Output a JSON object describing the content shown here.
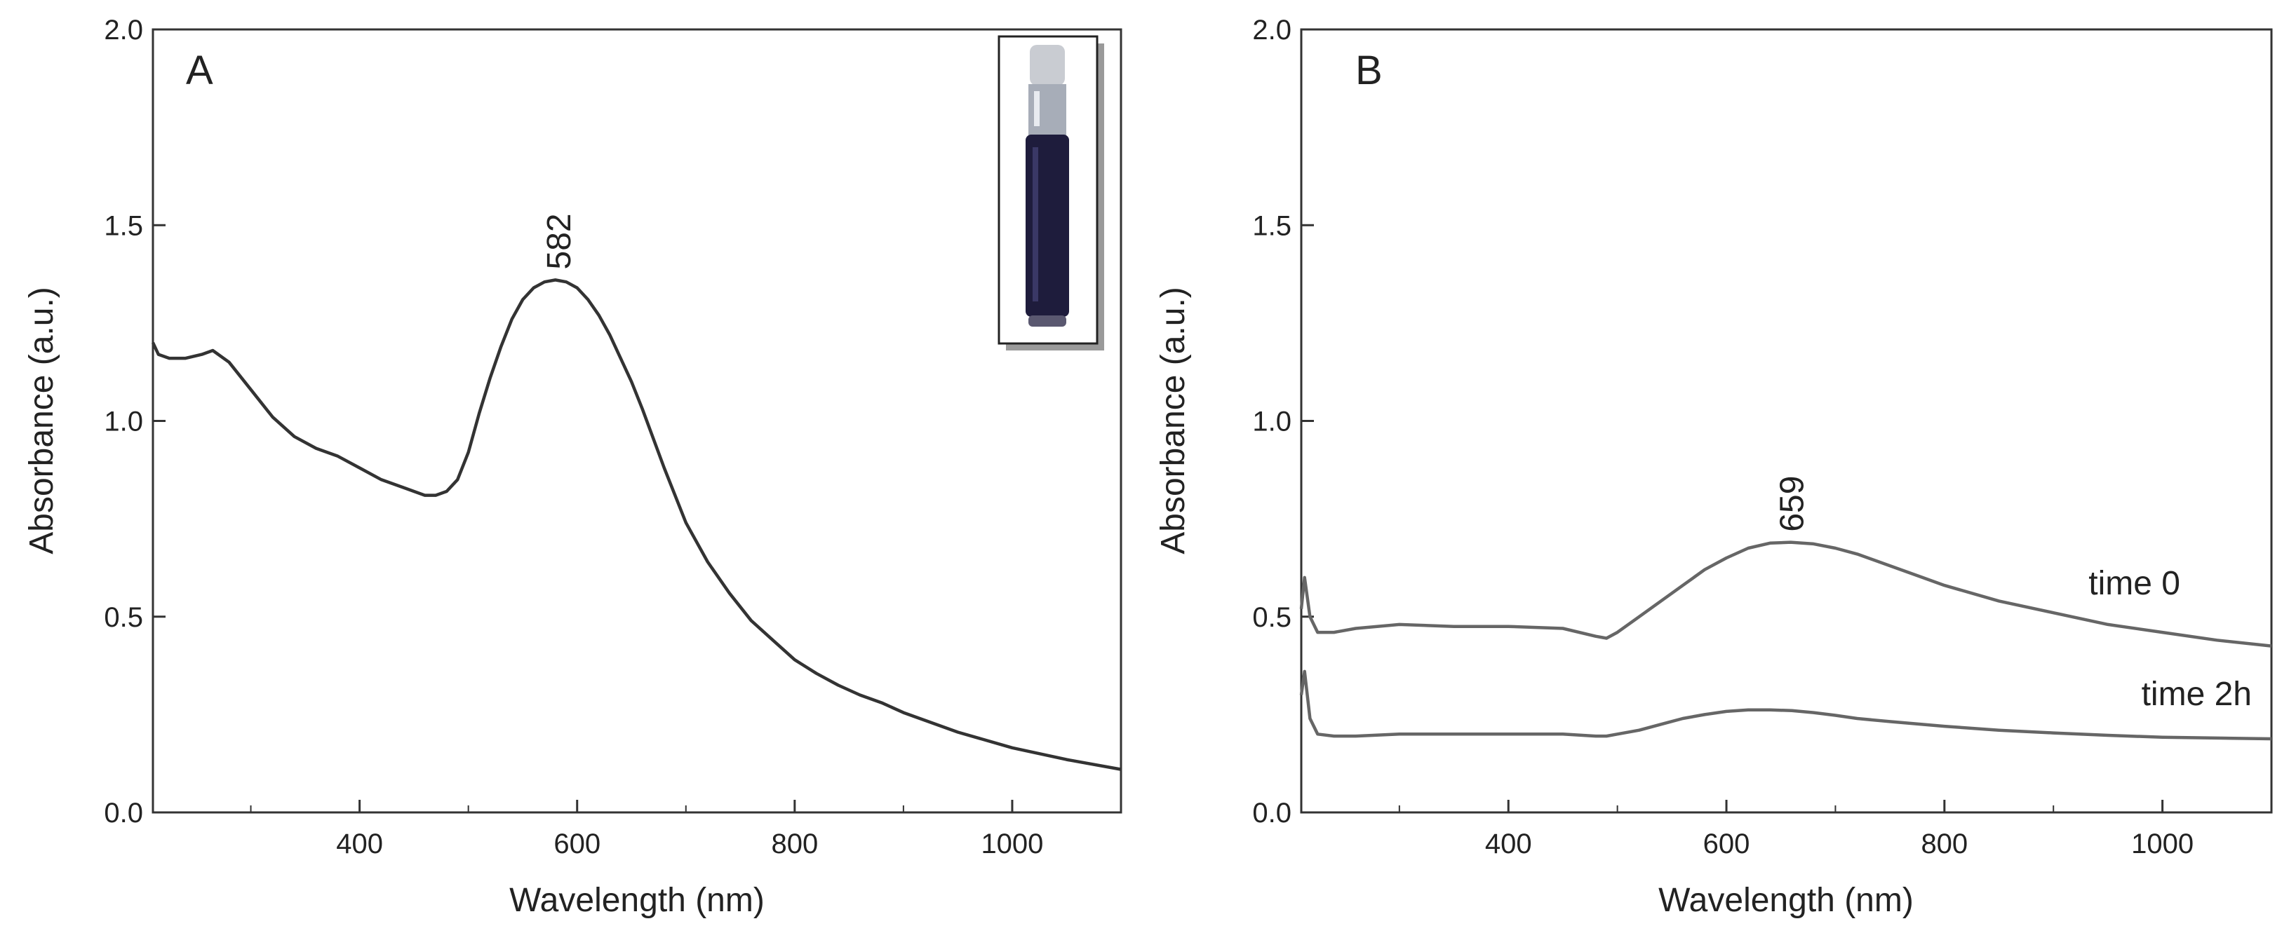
{
  "chart_data": [
    {
      "type": "line",
      "panel": "A",
      "xlabel": "Wavelength (nm)",
      "ylabel": "Absorbance (a.u.)",
      "xlim": [
        210,
        1100
      ],
      "ylim": [
        0.0,
        2.0
      ],
      "xticks": [
        400,
        600,
        800,
        1000
      ],
      "yticks": [
        "0.0",
        "0.5",
        "1.0",
        "1.5",
        "2.0"
      ],
      "grid": false,
      "inset": "vial-photo",
      "annotations": [
        {
          "text": "582",
          "x": 582,
          "y": 1.36
        }
      ],
      "series": [
        {
          "color": "#333333",
          "x": [
            210,
            215,
            225,
            240,
            255,
            265,
            280,
            300,
            320,
            340,
            360,
            380,
            400,
            420,
            440,
            460,
            470,
            480,
            490,
            500,
            510,
            520,
            530,
            540,
            550,
            560,
            570,
            580,
            590,
            600,
            610,
            620,
            630,
            640,
            650,
            660,
            680,
            700,
            720,
            740,
            760,
            780,
            800,
            820,
            840,
            860,
            880,
            900,
            950,
            1000,
            1050,
            1100
          ],
          "y": [
            1.2,
            1.17,
            1.16,
            1.16,
            1.17,
            1.18,
            1.15,
            1.08,
            1.01,
            0.96,
            0.93,
            0.91,
            0.88,
            0.85,
            0.83,
            0.81,
            0.81,
            0.82,
            0.85,
            0.92,
            1.02,
            1.11,
            1.19,
            1.26,
            1.31,
            1.34,
            1.355,
            1.36,
            1.355,
            1.34,
            1.31,
            1.27,
            1.22,
            1.16,
            1.1,
            1.03,
            0.88,
            0.74,
            0.64,
            0.56,
            0.49,
            0.44,
            0.39,
            0.355,
            0.325,
            0.3,
            0.28,
            0.255,
            0.205,
            0.165,
            0.135,
            0.11
          ]
        }
      ]
    },
    {
      "type": "line",
      "panel": "B",
      "xlabel": "Wavelength (nm)",
      "ylabel": "Absorbance (a.u.)",
      "xlim": [
        210,
        1100
      ],
      "ylim": [
        0.0,
        2.0
      ],
      "xticks": [
        400,
        600,
        800,
        1000
      ],
      "yticks": [
        "0.0",
        "0.5",
        "1.0",
        "1.5",
        "2.0"
      ],
      "grid": false,
      "annotations": [
        {
          "text": "659",
          "x": 659,
          "y": 0.69
        }
      ],
      "series": [
        {
          "name": "time 0",
          "color": "#666666",
          "x": [
            210,
            213,
            218,
            225,
            240,
            260,
            300,
            350,
            400,
            450,
            480,
            490,
            500,
            520,
            540,
            560,
            580,
            600,
            620,
            640,
            659,
            680,
            700,
            720,
            750,
            780,
            800,
            850,
            900,
            950,
            1000,
            1050,
            1100
          ],
          "y": [
            0.52,
            0.6,
            0.5,
            0.46,
            0.46,
            0.47,
            0.48,
            0.475,
            0.475,
            0.47,
            0.45,
            0.445,
            0.46,
            0.5,
            0.54,
            0.58,
            0.62,
            0.65,
            0.675,
            0.688,
            0.69,
            0.686,
            0.675,
            0.66,
            0.63,
            0.6,
            0.58,
            0.54,
            0.51,
            0.48,
            0.46,
            0.44,
            0.425
          ]
        },
        {
          "name": "time 2h",
          "color": "#666666",
          "x": [
            210,
            213,
            218,
            225,
            240,
            260,
            300,
            350,
            400,
            450,
            480,
            490,
            500,
            520,
            540,
            560,
            580,
            600,
            620,
            640,
            660,
            680,
            700,
            720,
            750,
            800,
            850,
            900,
            950,
            1000,
            1050,
            1100
          ],
          "y": [
            0.3,
            0.36,
            0.24,
            0.2,
            0.195,
            0.195,
            0.2,
            0.2,
            0.2,
            0.2,
            0.195,
            0.195,
            0.2,
            0.21,
            0.225,
            0.24,
            0.25,
            0.258,
            0.262,
            0.262,
            0.26,
            0.255,
            0.248,
            0.24,
            0.232,
            0.22,
            0.21,
            0.203,
            0.197,
            0.192,
            0.19,
            0.188
          ]
        }
      ]
    }
  ]
}
